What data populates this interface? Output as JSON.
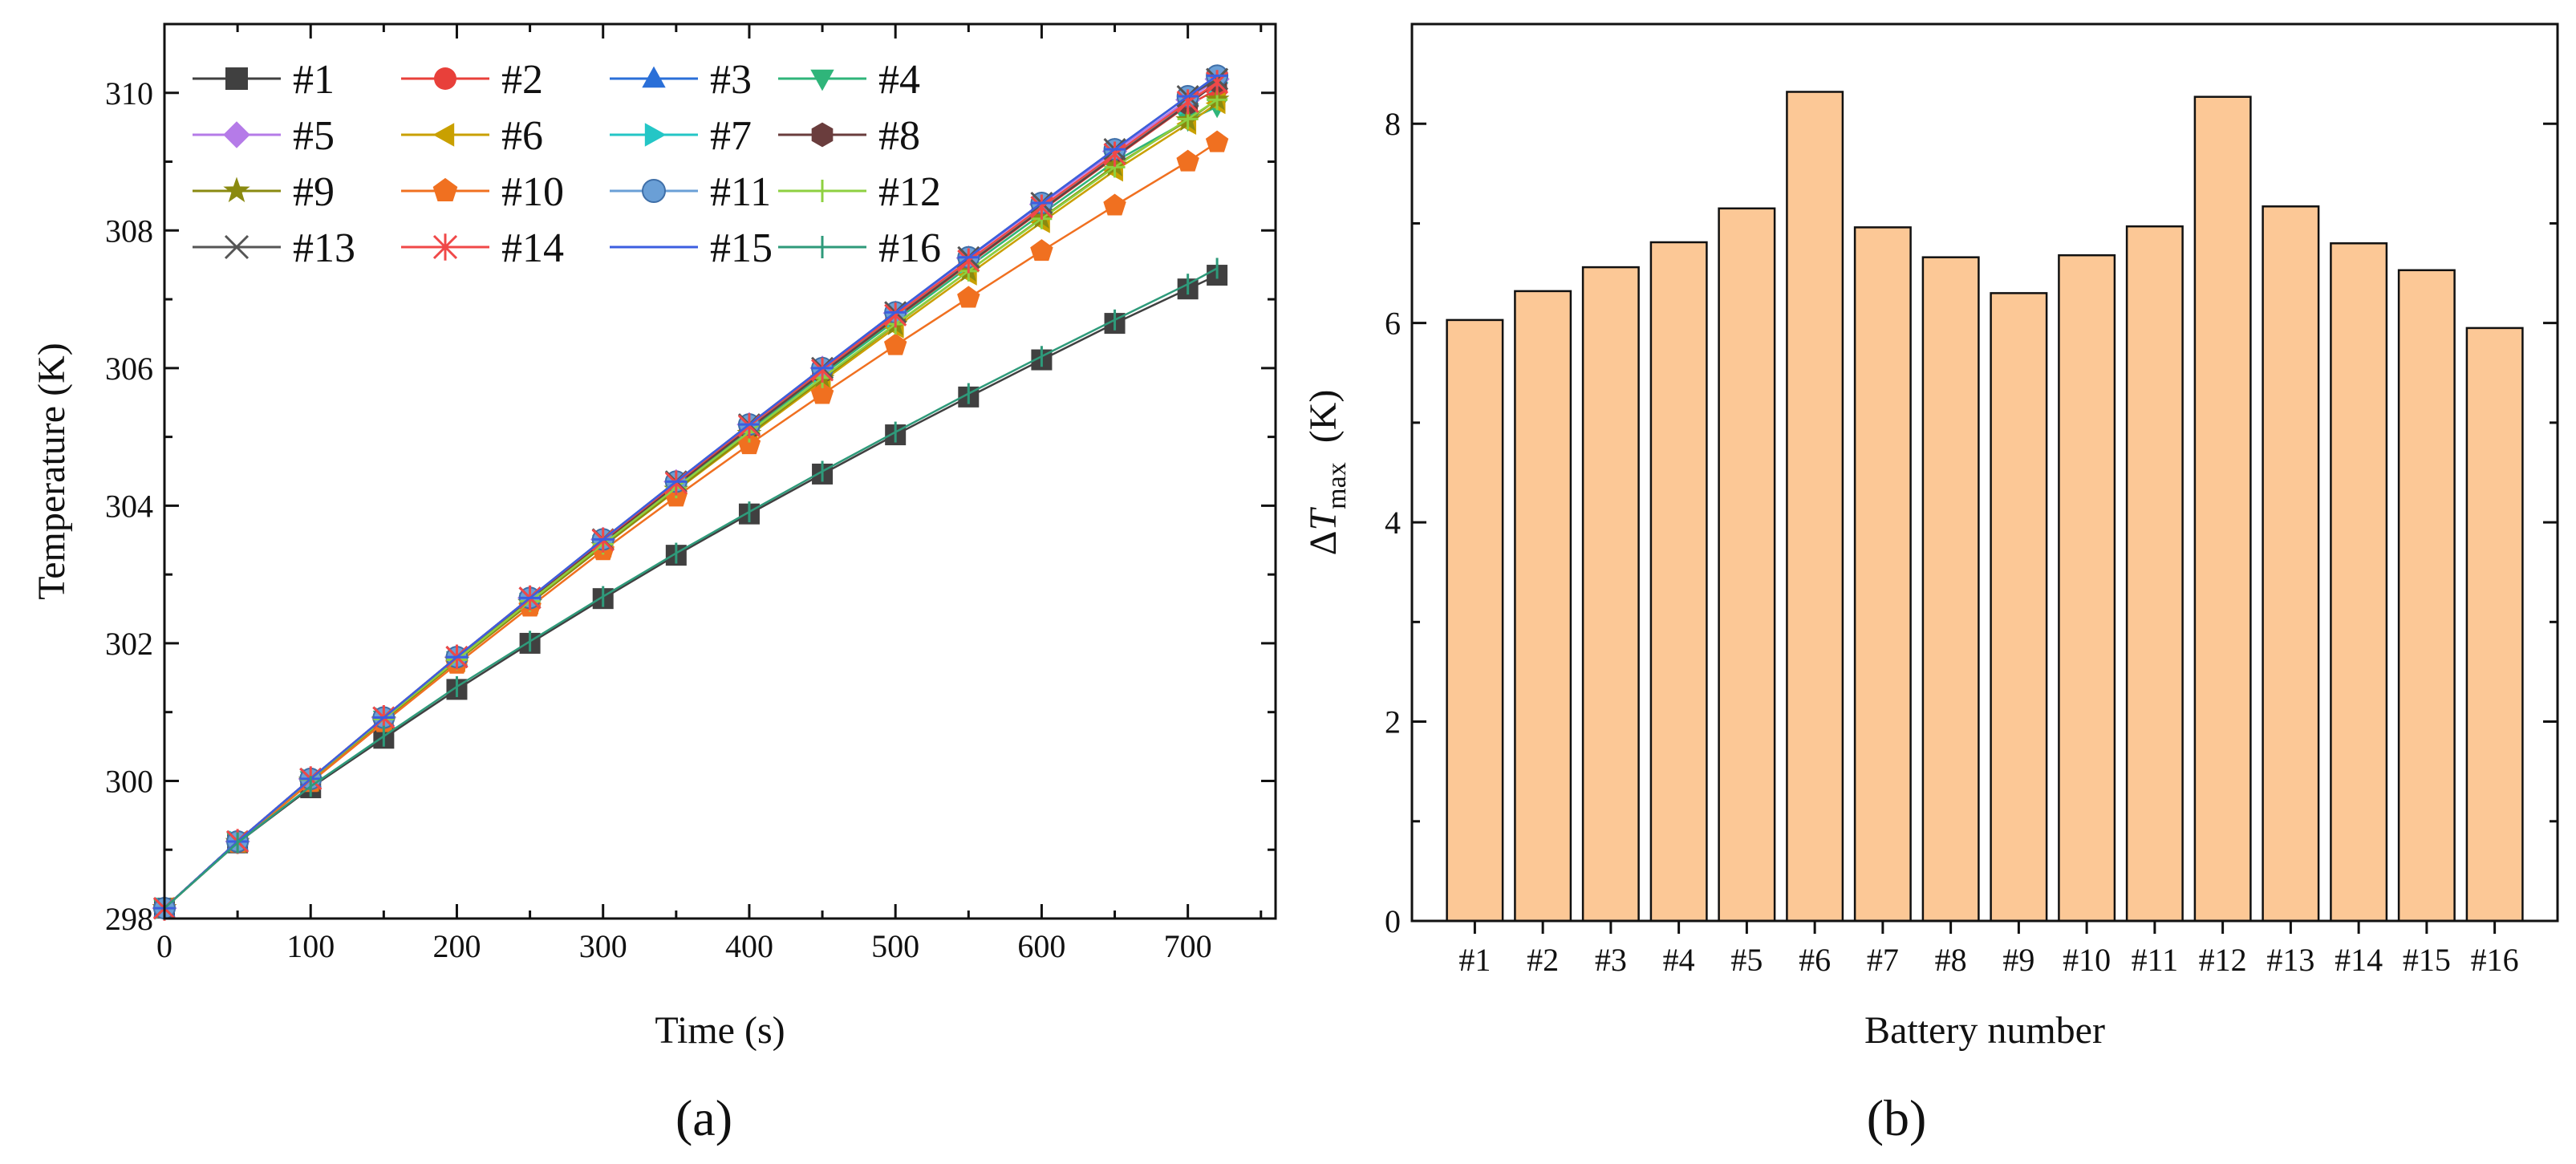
{
  "figure": {
    "panel_labels": [
      "(a)",
      "(b)"
    ]
  },
  "chart_data": [
    {
      "type": "line",
      "panel": "(a)",
      "title": "",
      "xlabel": "Time (s)",
      "ylabel": "Temperature (K)",
      "xlim": [
        0,
        760
      ],
      "ylim": [
        298,
        311
      ],
      "xticks": [
        0,
        100,
        200,
        300,
        400,
        500,
        600,
        700
      ],
      "yticks": [
        298,
        300,
        302,
        304,
        306,
        308,
        310
      ],
      "x": [
        0,
        50,
        100,
        150,
        200,
        250,
        300,
        350,
        400,
        450,
        500,
        550,
        600,
        650,
        700,
        720
      ],
      "legend_position": "top-left",
      "series": [
        {
          "name": "#1",
          "color": "#404040",
          "marker": "square",
          "values": [
            298.15,
            299.1,
            299.9,
            300.62,
            301.33,
            302.0,
            302.65,
            303.28,
            303.88,
            304.46,
            305.03,
            305.58,
            306.12,
            306.65,
            307.15,
            307.35
          ]
        },
        {
          "name": "#2",
          "color": "#e8403a",
          "marker": "circle",
          "values": [
            298.15,
            299.12,
            300.02,
            300.9,
            301.77,
            302.62,
            303.46,
            304.29,
            305.11,
            305.92,
            306.72,
            307.51,
            308.29,
            309.06,
            309.82,
            310.05
          ]
        },
        {
          "name": "#3",
          "color": "#2a6fd8",
          "marker": "triangle-up",
          "values": [
            298.15,
            299.12,
            300.03,
            300.92,
            301.8,
            302.66,
            303.51,
            304.35,
            305.18,
            306.0,
            306.81,
            307.61,
            308.4,
            309.18,
            309.95,
            310.25
          ]
        },
        {
          "name": "#4",
          "color": "#2fb57a",
          "marker": "triangle-down",
          "values": [
            298.15,
            299.12,
            300.02,
            300.9,
            301.76,
            302.61,
            303.45,
            304.28,
            305.1,
            305.9,
            306.69,
            307.47,
            308.24,
            309.0,
            309.6,
            309.8
          ]
        },
        {
          "name": "#5",
          "color": "#b57be8",
          "marker": "diamond",
          "values": [
            298.15,
            299.12,
            300.03,
            300.92,
            301.8,
            302.66,
            303.51,
            304.35,
            305.18,
            306.0,
            306.8,
            307.6,
            308.38,
            309.15,
            309.9,
            310.2
          ]
        },
        {
          "name": "#6",
          "color": "#c9a000",
          "marker": "triangle-left",
          "values": [
            298.15,
            299.11,
            300.0,
            300.88,
            301.74,
            302.58,
            303.41,
            304.22,
            305.02,
            305.81,
            306.59,
            307.36,
            308.12,
            308.87,
            309.55,
            309.85
          ]
        },
        {
          "name": "#7",
          "color": "#24c6c6",
          "marker": "triangle-right",
          "values": [
            298.15,
            299.12,
            300.02,
            300.91,
            301.78,
            302.64,
            303.48,
            304.31,
            305.13,
            305.94,
            306.74,
            307.53,
            308.31,
            309.08,
            309.84,
            310.15
          ]
        },
        {
          "name": "#8",
          "color": "#6a3d3d",
          "marker": "hexagon",
          "values": [
            298.15,
            299.12,
            300.02,
            300.91,
            301.78,
            302.63,
            303.47,
            304.3,
            305.12,
            305.93,
            306.73,
            307.52,
            308.3,
            309.07,
            309.83,
            310.15
          ]
        },
        {
          "name": "#9",
          "color": "#8a8a10",
          "marker": "star",
          "values": [
            298.15,
            299.11,
            300.0,
            300.88,
            301.74,
            302.58,
            303.41,
            304.23,
            305.04,
            305.84,
            306.63,
            307.41,
            308.18,
            308.94,
            309.6,
            309.9
          ]
        },
        {
          "name": "#10",
          "color": "#f07020",
          "marker": "pentagon",
          "values": [
            298.15,
            299.1,
            299.98,
            300.85,
            301.7,
            302.53,
            303.35,
            304.13,
            304.89,
            305.62,
            306.33,
            307.02,
            307.7,
            308.36,
            309.0,
            309.28
          ]
        },
        {
          "name": "#11",
          "color": "#6a9fd6",
          "marker": "sphere",
          "values": [
            298.15,
            299.12,
            300.03,
            300.92,
            301.8,
            302.66,
            303.51,
            304.35,
            305.18,
            306.0,
            306.81,
            307.61,
            308.4,
            309.18,
            309.95,
            310.25
          ]
        },
        {
          "name": "#12",
          "color": "#8ed040",
          "marker": "plus",
          "values": [
            298.15,
            299.12,
            300.02,
            300.9,
            301.76,
            302.61,
            303.44,
            304.26,
            305.07,
            305.86,
            306.64,
            307.41,
            308.17,
            308.92,
            309.62,
            309.9
          ]
        },
        {
          "name": "#13",
          "color": "#555555",
          "marker": "x",
          "values": [
            298.15,
            299.12,
            300.03,
            300.92,
            301.8,
            302.66,
            303.51,
            304.35,
            305.18,
            306.0,
            306.81,
            307.61,
            308.4,
            309.18,
            309.95,
            310.2
          ]
        },
        {
          "name": "#14",
          "color": "#f04848",
          "marker": "asterisk",
          "values": [
            298.15,
            299.12,
            300.03,
            300.92,
            301.8,
            302.66,
            303.5,
            304.33,
            305.16,
            305.97,
            306.77,
            307.56,
            308.34,
            309.11,
            309.87,
            310.15
          ]
        },
        {
          "name": "#15",
          "color": "#3c5ee0",
          "marker": "dash",
          "values": [
            298.15,
            299.12,
            300.03,
            300.92,
            301.8,
            302.66,
            303.51,
            304.35,
            305.18,
            306.0,
            306.81,
            307.61,
            308.4,
            309.18,
            309.95,
            310.25
          ]
        },
        {
          "name": "#16",
          "color": "#2e9a7a",
          "marker": "vline",
          "values": [
            298.15,
            299.1,
            299.92,
            300.65,
            301.37,
            302.03,
            302.68,
            303.31,
            303.91,
            304.5,
            305.07,
            305.63,
            306.17,
            306.7,
            307.22,
            307.45
          ]
        }
      ]
    },
    {
      "type": "bar",
      "panel": "(b)",
      "title": "",
      "xlabel": "Battery number",
      "ylabel": {
        "delta": "Δ",
        "symbol": "T",
        "subscript": "max",
        "unit": "(K)"
      },
      "ylim": [
        0,
        9
      ],
      "yticks": [
        0,
        2,
        4,
        6,
        8
      ],
      "categories": [
        "#1",
        "#2",
        "#3",
        "#4",
        "#5",
        "#6",
        "#7",
        "#8",
        "#9",
        "#10",
        "#11",
        "#12",
        "#13",
        "#14",
        "#15",
        "#16"
      ],
      "values": [
        6.03,
        6.32,
        6.56,
        6.81,
        7.15,
        8.32,
        6.96,
        6.66,
        6.3,
        6.68,
        6.97,
        8.27,
        7.17,
        6.8,
        6.53,
        5.95
      ],
      "bar_color": "#fcc896",
      "edge_color": "#111111"
    }
  ]
}
